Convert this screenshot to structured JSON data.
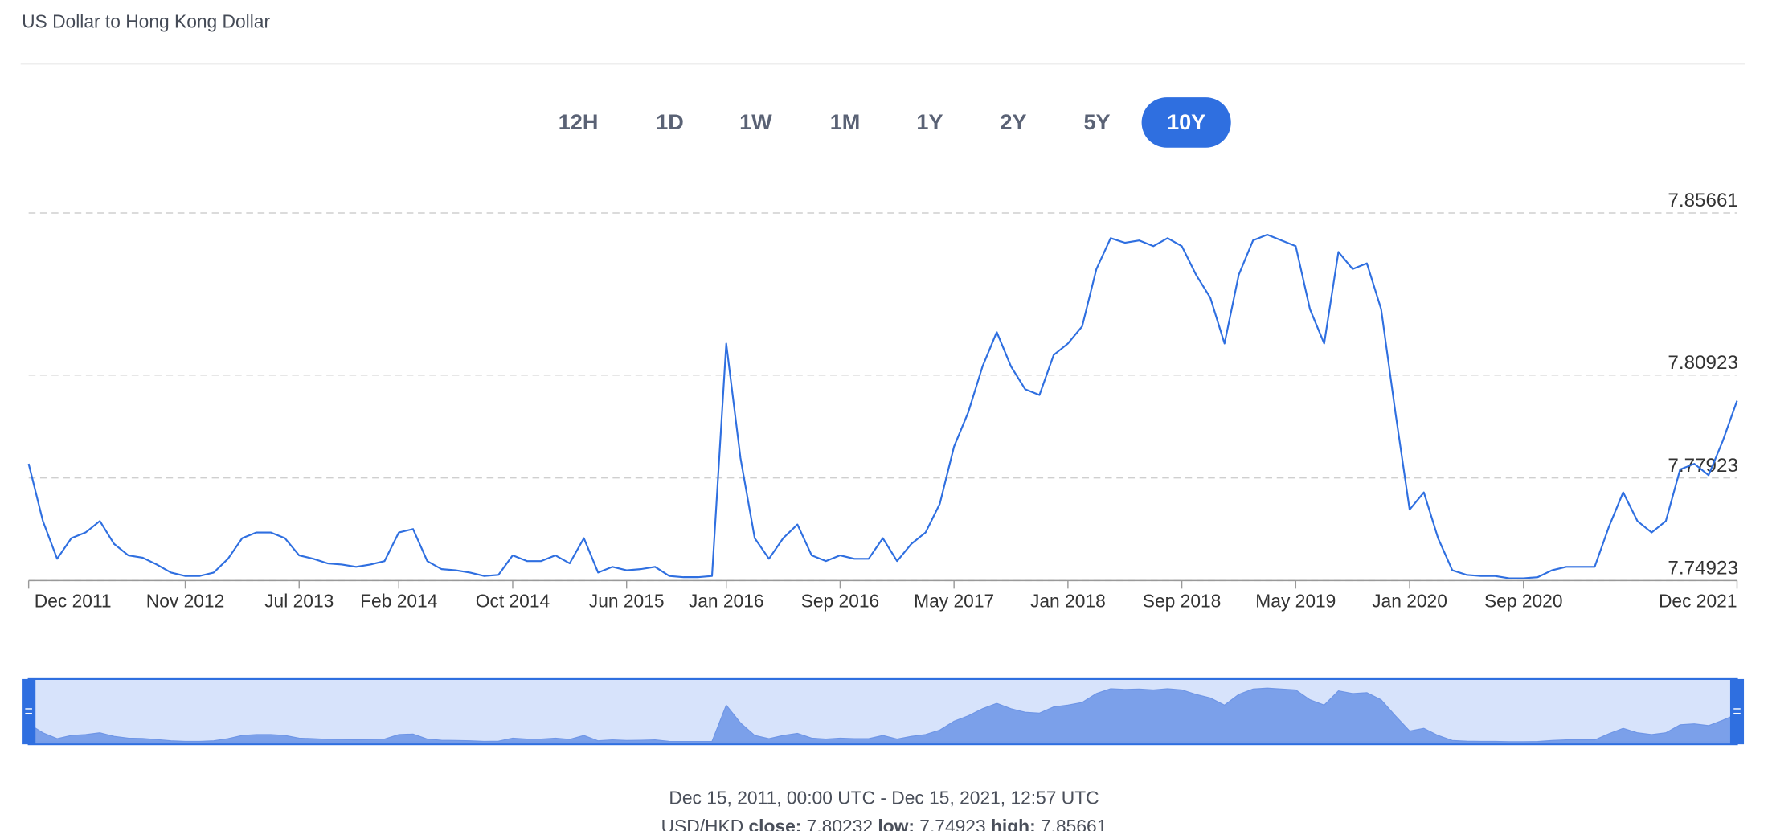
{
  "header": {
    "title": "US Dollar to Hong Kong Dollar"
  },
  "ranges": {
    "options": [
      "12H",
      "1D",
      "1W",
      "1M",
      "1Y",
      "2Y",
      "5Y",
      "10Y"
    ],
    "active": 7
  },
  "chart_data": {
    "type": "line",
    "color": "#2f6fe0",
    "x": [
      "2011-12",
      "2012-01",
      "2012-02",
      "2012-03",
      "2012-04",
      "2012-05",
      "2012-06",
      "2012-07",
      "2012-08",
      "2012-09",
      "2012-10",
      "2012-11",
      "2012-12",
      "2013-01",
      "2013-02",
      "2013-03",
      "2013-04",
      "2013-05",
      "2013-06",
      "2013-07",
      "2013-08",
      "2013-09",
      "2013-10",
      "2013-11",
      "2013-12",
      "2014-01",
      "2014-02",
      "2014-03",
      "2014-04",
      "2014-05",
      "2014-06",
      "2014-07",
      "2014-08",
      "2014-09",
      "2014-10",
      "2014-11",
      "2014-12",
      "2015-01",
      "2015-02",
      "2015-03",
      "2015-04",
      "2015-05",
      "2015-06",
      "2015-07",
      "2015-08",
      "2015-09",
      "2015-10",
      "2015-11",
      "2015-12",
      "2016-01",
      "2016-02",
      "2016-03",
      "2016-04",
      "2016-05",
      "2016-06",
      "2016-07",
      "2016-08",
      "2016-09",
      "2016-10",
      "2016-11",
      "2016-12",
      "2017-01",
      "2017-02",
      "2017-03",
      "2017-04",
      "2017-05",
      "2017-06",
      "2017-07",
      "2017-08",
      "2017-09",
      "2017-10",
      "2017-11",
      "2017-12",
      "2018-01",
      "2018-02",
      "2018-03",
      "2018-04",
      "2018-05",
      "2018-06",
      "2018-07",
      "2018-08",
      "2018-09",
      "2018-10",
      "2018-11",
      "2018-12",
      "2019-01",
      "2019-02",
      "2019-03",
      "2019-04",
      "2019-05",
      "2019-06",
      "2019-07",
      "2019-08",
      "2019-09",
      "2019-10",
      "2019-11",
      "2019-12",
      "2020-01",
      "2020-02",
      "2020-03",
      "2020-04",
      "2020-05",
      "2020-06",
      "2020-07",
      "2020-08",
      "2020-09",
      "2020-10",
      "2020-11",
      "2020-12",
      "2021-01",
      "2021-02",
      "2021-03",
      "2021-04",
      "2021-05",
      "2021-06",
      "2021-07",
      "2021-08",
      "2021-09",
      "2021-10",
      "2021-11",
      "2021-12"
    ],
    "values": [
      7.78335,
      7.76663,
      7.75559,
      7.76161,
      7.76328,
      7.76663,
      7.75994,
      7.75659,
      7.75592,
      7.75391,
      7.75157,
      7.75057,
      7.75057,
      7.75157,
      7.75559,
      7.76161,
      7.76328,
      7.76328,
      7.76161,
      7.75659,
      7.75559,
      7.75425,
      7.75391,
      7.75324,
      7.75391,
      7.75492,
      7.76328,
      7.76429,
      7.75492,
      7.75258,
      7.75224,
      7.75157,
      7.75057,
      7.7509,
      7.75659,
      7.75492,
      7.75492,
      7.75659,
      7.75425,
      7.76161,
      7.75157,
      7.75324,
      7.75224,
      7.75258,
      7.75324,
      7.75057,
      7.75023,
      7.75023,
      7.75057,
      7.81848,
      7.78503,
      7.76161,
      7.75559,
      7.76161,
      7.76562,
      7.75659,
      7.75492,
      7.75659,
      7.75559,
      7.75559,
      7.76161,
      7.75492,
      7.75994,
      7.76328,
      7.77165,
      7.78837,
      7.79841,
      7.81179,
      7.82183,
      7.81179,
      7.8051,
      7.80343,
      7.81514,
      7.81848,
      7.8235,
      7.84023,
      7.84926,
      7.84792,
      7.84859,
      7.84692,
      7.84926,
      7.84692,
      7.83856,
      7.83187,
      7.81848,
      7.83856,
      7.84859,
      7.85027,
      7.84859,
      7.84692,
      7.82852,
      7.81848,
      7.84525,
      7.84023,
      7.8419,
      7.82852,
      7.79841,
      7.76997,
      7.77499,
      7.76161,
      7.75224,
      7.7509,
      7.75057,
      7.75057,
      7.7499,
      7.7499,
      7.75023,
      7.75224,
      7.75324,
      7.75324,
      7.75324,
      7.76496,
      7.77499,
      7.76663,
      7.76328,
      7.76663,
      7.78168,
      7.78335,
      7.78001,
      7.79005,
      7.80176
    ],
    "xlim": [
      "2011-12",
      "2021-12"
    ],
    "xticks": [
      {
        "value": "2011-12",
        "label": "Dec 2011"
      },
      {
        "value": "2012-11",
        "label": "Nov 2012"
      },
      {
        "value": "2013-07",
        "label": "Jul 2013"
      },
      {
        "value": "2014-02",
        "label": "Feb 2014"
      },
      {
        "value": "2014-10",
        "label": "Oct 2014"
      },
      {
        "value": "2015-06",
        "label": "Jun 2015"
      },
      {
        "value": "2016-01",
        "label": "Jan 2016"
      },
      {
        "value": "2016-09",
        "label": "Sep 2016"
      },
      {
        "value": "2017-05",
        "label": "May 2017"
      },
      {
        "value": "2018-01",
        "label": "Jan 2018"
      },
      {
        "value": "2018-09",
        "label": "Sep 2018"
      },
      {
        "value": "2019-05",
        "label": "May 2019"
      },
      {
        "value": "2020-01",
        "label": "Jan 2020"
      },
      {
        "value": "2020-09",
        "label": "Sep 2020"
      },
      {
        "value": "2021-12",
        "label": "Dec 2021"
      }
    ],
    "ylim": [
      7.74923,
      7.85661
    ],
    "yticks": [
      7.74923,
      7.77923,
      7.80923,
      7.85661
    ],
    "grid": true
  },
  "footer": {
    "range": "Dec 15, 2011, 00:00 UTC - Dec 15, 2021, 12:57 UTC",
    "pair": "USD/HKD",
    "close_label": "close:",
    "close": 7.80232,
    "low_label": "low:",
    "low": 7.74923,
    "high_label": "high:",
    "high": 7.85661
  }
}
